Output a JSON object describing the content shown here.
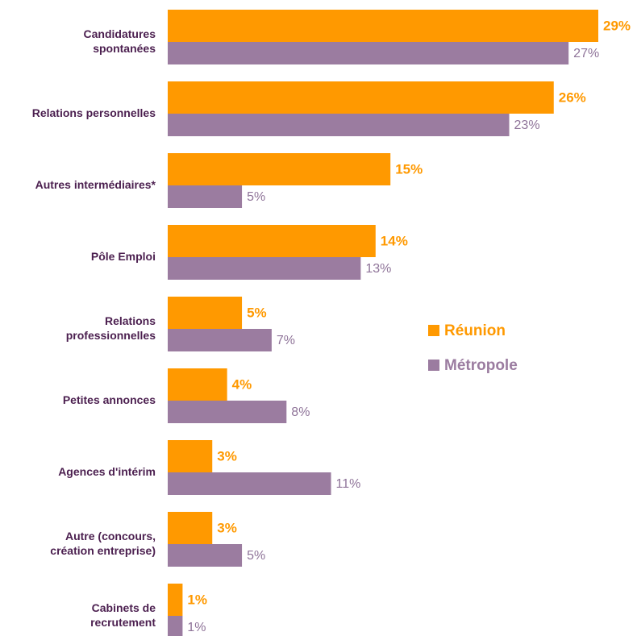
{
  "chart_data": {
    "type": "bar",
    "orientation": "horizontal",
    "categories": [
      "Candidatures\nspontanées",
      "Relations personnelles",
      "Autres intermédiaires*",
      "Pôle Emploi",
      "Relations\nprofessionnelles",
      "Petites annonces",
      "Agences d'intérim",
      "Autre (concours,\ncréation entreprise)",
      "Cabinets de\nrecrutement"
    ],
    "series": [
      {
        "name": "Réunion",
        "color": "#ff9900",
        "values": [
          29,
          26,
          15,
          14,
          5,
          4,
          3,
          3,
          1
        ],
        "value_labels": [
          "29%",
          "26%",
          "15%",
          "14%",
          "5%",
          "4%",
          "3%",
          "3%",
          "1%"
        ]
      },
      {
        "name": "Métropole",
        "color": "#9b7ca0",
        "values": [
          27,
          23,
          5,
          13,
          7,
          8,
          11,
          5,
          1
        ],
        "value_labels": [
          "27%",
          "23%",
          "5%",
          "13%",
          "7%",
          "8%",
          "11%",
          "5%",
          "1%"
        ]
      }
    ]
  }
}
